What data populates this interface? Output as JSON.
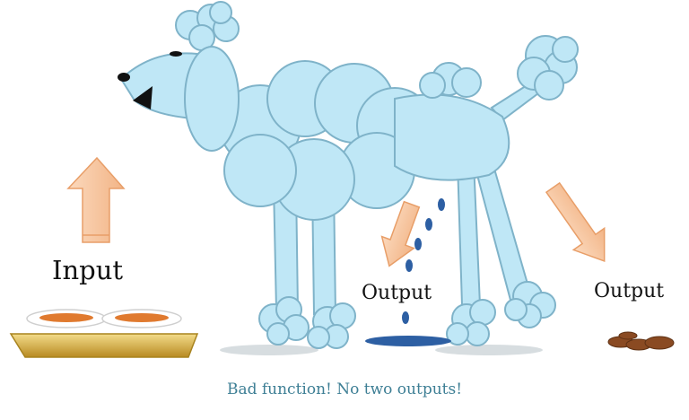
{
  "labels": {
    "input": "Input",
    "output_left": "Output",
    "output_right": "Output"
  },
  "caption": "Bad function! No two outputs!",
  "colors": {
    "poodle_fill": "#bfe7f6",
    "poodle_stroke": "#7fb3c9",
    "arrow_fill": "#f7c8a5",
    "caption": "#3e7f95",
    "tray": "#d9b24a",
    "food": "#e07a2f",
    "puddle": "#2d5fa3",
    "poop": "#8a4a22"
  },
  "icons": [
    "poodle",
    "food-bowl",
    "up-arrow",
    "down-arrow",
    "urine-drops",
    "puddle",
    "poop"
  ]
}
